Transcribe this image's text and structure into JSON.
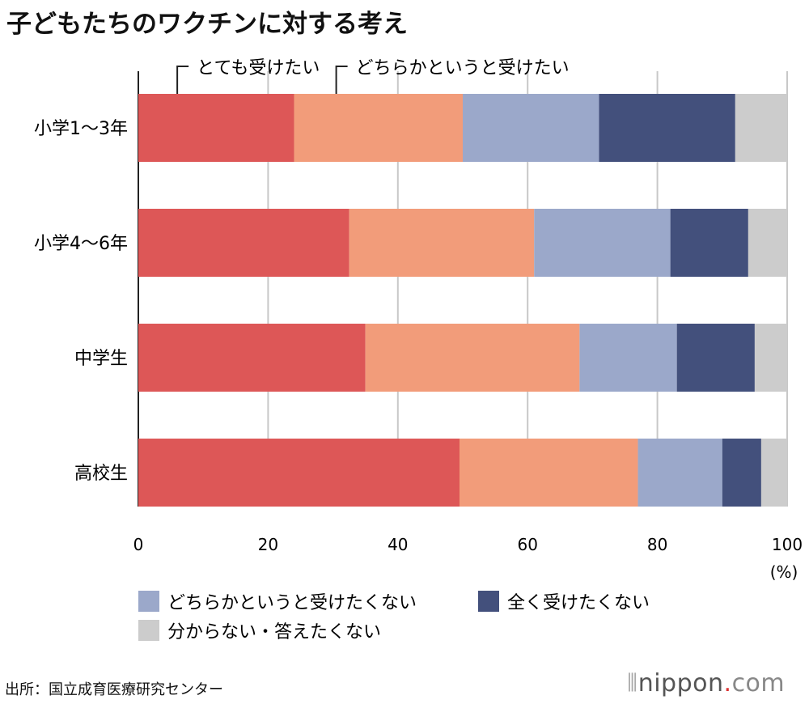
{
  "title": "子どもたちのワクチンに対する考え",
  "source": "出所：国立成育医療研究センター",
  "logo": "nippon.com",
  "chart_data": {
    "type": "bar",
    "orientation": "horizontal",
    "stacked": true,
    "title": "子どもたちのワクチンに対する考え",
    "categories": [
      "小学1～3年",
      "小学4～6年",
      "中学生",
      "高校生"
    ],
    "series": [
      {
        "name": "とても受けたい",
        "color": "#dd5757",
        "values": [
          24,
          32.5,
          35,
          49.5
        ]
      },
      {
        "name": "どちらかというと受けたい",
        "color": "#f29c7a",
        "values": [
          26,
          28.5,
          33,
          27.5
        ]
      },
      {
        "name": "どちらかというと受けたくない",
        "color": "#9ba8ca",
        "values": [
          21,
          21,
          15,
          13
        ]
      },
      {
        "name": "全く受けたくない",
        "color": "#43507c",
        "values": [
          21,
          12,
          12,
          6
        ]
      },
      {
        "name": "分からない・答えたくない",
        "color": "#cccccc",
        "values": [
          8,
          6,
          5,
          4
        ]
      }
    ],
    "xlim": [
      0,
      100
    ],
    "xticks": [
      "0",
      "20",
      "40",
      "60",
      "80",
      "100"
    ],
    "xunit": "(%)",
    "grid": true,
    "legend": "bottom"
  }
}
